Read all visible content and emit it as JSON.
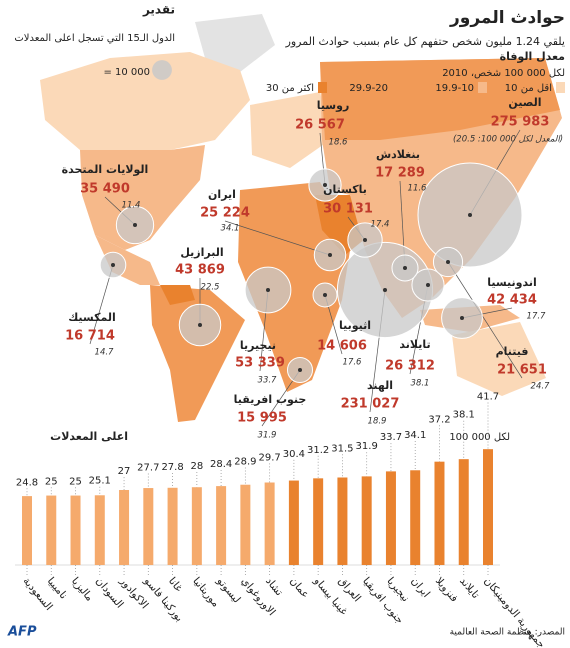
{
  "header": {
    "title": "حوادث المرور",
    "subtitle": "يلقي 1.24 مليون شخص حتفهم كل عام بسبب حوادث المرور"
  },
  "legend": {
    "title": "معدل الوفاة",
    "subtitle": "لكل 100 000 شخص، 2010",
    "classes": [
      {
        "label": "اقل من 10",
        "color": "#fbd9b8"
      },
      {
        "label": "19.9-10",
        "color": "#f6b98a"
      },
      {
        "label": "29.9-20",
        "color": "#f19a57"
      },
      {
        "label": "اكثر من 30",
        "color": "#e9822e"
      }
    ]
  },
  "estimate": {
    "title": "تقدير",
    "text": "الدول الـ15 التي تسجل اعلى المعدلات",
    "scale": {
      "value": 10000,
      "label": "= 10 000"
    }
  },
  "chart_data": [
    {
      "type": "bubble",
      "categories": [
        "الصين",
        "الهند",
        "نيجيريا",
        "البرازيل",
        "اندونيسيا",
        "الولايات المتحدة",
        "باكستان",
        "روسيا",
        "تايلاند",
        "ايران",
        "فيتنام",
        "بنغلادش",
        "المكسيك",
        "جنوب افريقيا",
        "اثيوبيا"
      ],
      "values": [
        275983,
        231027,
        53339,
        43869,
        42434,
        35490,
        30131,
        26567,
        26312,
        25224,
        21651,
        17289,
        16714,
        15995,
        14606
      ],
      "value_labels": [
        "275 983",
        "231 027",
        "53 339",
        "43 869",
        "42 434",
        "35 490",
        "30 131",
        "26 567",
        "26 312",
        "25 224",
        "21 651",
        "17 289",
        "16 714",
        "15 995",
        "14 606"
      ],
      "rates": [
        {
          "value": 20.5,
          "label": "(المعدل لكل 100 000: 20.5)"
        },
        18.9,
        33.7,
        22.5,
        17.7,
        11.4,
        17.4,
        18.6,
        38.1,
        34.1,
        24.7,
        11.6,
        14.7,
        31.9,
        17.6
      ],
      "color": "#c8c8c8"
    },
    {
      "type": "bar",
      "title": "اعلى المعدلات",
      "unit_label": "لكل 100 000",
      "categories": [
        "السعودية",
        "ناميبيا",
        "ماليزيا",
        "السودان",
        "الاكوادور",
        "بوركينا فاسو",
        "غانا",
        "موريتانيا",
        "ليسوتو",
        "الاوروغواي",
        "تشاد",
        "عمان",
        "غينيا بيساو",
        "العراق",
        "جنوب افريقيا",
        "نيجيريا",
        "ايران",
        "فنزويلا",
        "تايلاند",
        "جمهورية الدومينيكان"
      ],
      "values": [
        24.8,
        25,
        25,
        25.1,
        27,
        27.7,
        27.8,
        28,
        28.4,
        28.9,
        29.7,
        30.4,
        31.2,
        31.5,
        31.9,
        33.7,
        34.1,
        37.2,
        38.1,
        41.7
      ],
      "colors": [
        "#f5aa6c",
        "#f5aa6c",
        "#f5aa6c",
        "#f5aa6c",
        "#f5aa6c",
        "#f5aa6c",
        "#f5aa6c",
        "#f5aa6c",
        "#f5aa6c",
        "#f5aa6c",
        "#f5aa6c",
        "#e9822e",
        "#e9822e",
        "#e9822e",
        "#e9822e",
        "#e9822e",
        "#e9822e",
        "#e9822e",
        "#e9822e",
        "#e9822e"
      ],
      "ylim": [
        0,
        45
      ]
    }
  ],
  "footer": {
    "source": "المصدر: منظمة الصحة العالمية",
    "logo": "AFP"
  }
}
